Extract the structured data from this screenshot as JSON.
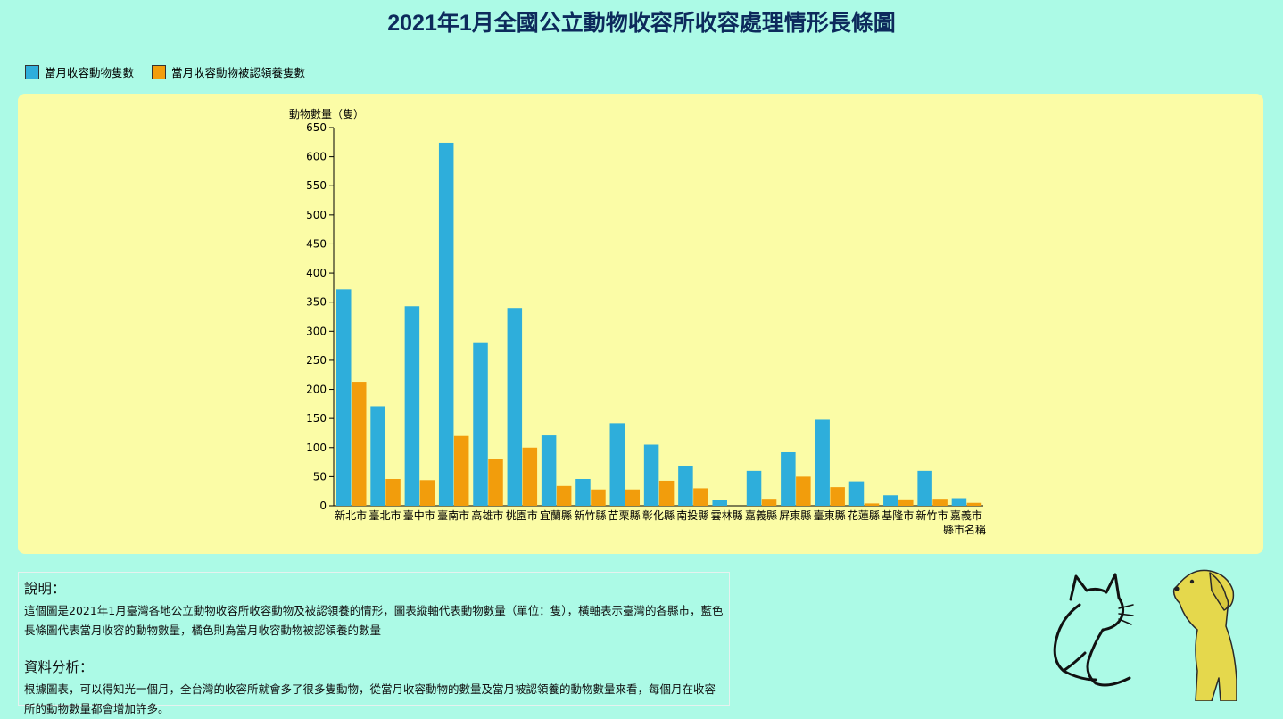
{
  "page": {
    "title": "2021年1月全國公立動物收容所收容處理情形長條圖"
  },
  "legend": {
    "items": [
      {
        "label": "當月收容動物隻數",
        "color": "#2eaedb"
      },
      {
        "label": "當月收容動物被認領養隻數",
        "color": "#f29d0c"
      }
    ]
  },
  "chart_data": {
    "type": "bar",
    "ylabel": "動物數量（隻）",
    "xlabel": "縣市名稱",
    "ylim": [
      0,
      650
    ],
    "yticks": [
      0,
      50,
      100,
      150,
      200,
      250,
      300,
      350,
      400,
      450,
      500,
      550,
      600,
      650
    ],
    "grid": false,
    "categories": [
      "新北市",
      "臺北市",
      "臺中市",
      "臺南市",
      "高雄市",
      "桃園市",
      "宜蘭縣",
      "新竹縣",
      "苗栗縣",
      "彰化縣",
      "南投縣",
      "雲林縣",
      "嘉義縣",
      "屏東縣",
      "臺東縣",
      "花蓮縣",
      "基隆市",
      "新竹市",
      "嘉義市"
    ],
    "series": [
      {
        "name": "當月收容動物隻數",
        "color": "#2eaedb",
        "values": [
          372,
          171,
          343,
          624,
          281,
          340,
          121,
          46,
          142,
          105,
          69,
          10,
          60,
          92,
          148,
          42,
          18,
          60,
          13
        ]
      },
      {
        "name": "當月收容動物被認領養隻數",
        "color": "#f29d0c",
        "values": [
          213,
          46,
          44,
          120,
          80,
          100,
          34,
          28,
          28,
          43,
          30,
          0,
          12,
          50,
          32,
          4,
          11,
          12,
          5
        ]
      }
    ]
  },
  "notes": {
    "explanation_heading": "說明：",
    "explanation_text": "這個圖是2021年1月臺灣各地公立動物收容所收容動物及被認領養的情形，圖表縱軸代表動物數量（單位：隻），橫軸表示臺灣的各縣市，藍色長條圖代表當月收容的動物數量，橘色則為當月收容動物被認領養的數量",
    "analysis_heading": "資料分析：",
    "analysis_text": "根據圖表，可以得知光一個月，全台灣的收容所就會多了很多隻動物，從當月收容動物的數量及當月被認領養的動物數量來看，每個月在收容所的動物數量都會增加許多。"
  },
  "decor": {
    "cat_icon": "cat-icon",
    "dog_icon": "dog-icon"
  }
}
